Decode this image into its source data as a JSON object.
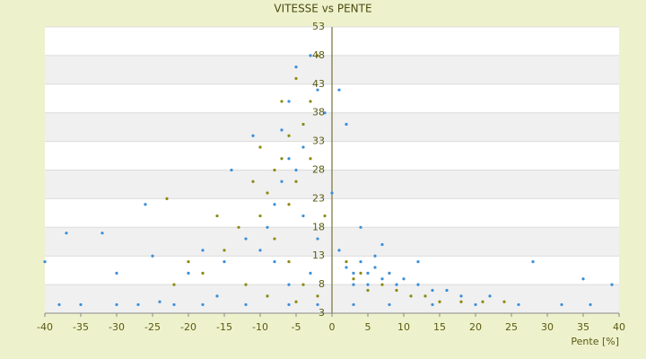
{
  "chart_data": {
    "type": "scatter",
    "title": "VITESSE vs PENTE",
    "x_label": "Pente [%]",
    "xlim": [
      -40,
      40
    ],
    "xticks": [
      -40,
      -35,
      -30,
      -25,
      -20,
      -15,
      -10,
      -5,
      0,
      5,
      10,
      15,
      20,
      25,
      30,
      35,
      40
    ],
    "ylim": [
      3,
      53
    ],
    "yticks": [
      3,
      8,
      13,
      18,
      23,
      28,
      33,
      38,
      43,
      48,
      53
    ],
    "grid": true,
    "series": [
      {
        "name": "blue",
        "color": "#3a8fd8",
        "x": [
          -38,
          -35,
          -30,
          -27,
          -22,
          -18,
          -12,
          -6,
          -2,
          3,
          8,
          14,
          20,
          26,
          32,
          36,
          2,
          3,
          4,
          5,
          6,
          7,
          8,
          9,
          10,
          12,
          14,
          16,
          18,
          22,
          1,
          3,
          5,
          6,
          -6,
          -5,
          -7,
          -4,
          -6,
          -5,
          -3,
          -8,
          -9,
          -10,
          -4,
          -7,
          -2,
          -1,
          -12,
          -15,
          -18,
          -20,
          -25,
          -30,
          -32,
          -37,
          -40,
          -26,
          -14,
          -11,
          -3,
          -6,
          -8,
          -2,
          0,
          1,
          2,
          4,
          7,
          12,
          28,
          35,
          39,
          -16,
          -24
        ],
        "values": [
          4.5,
          4.5,
          4.5,
          4.5,
          4.5,
          4.5,
          4.5,
          4.5,
          4.5,
          4.5,
          4.5,
          4.5,
          4.5,
          4.5,
          4.5,
          4.5,
          11,
          10,
          12,
          10,
          11,
          9,
          10,
          8,
          9,
          8,
          7,
          7,
          6,
          6,
          14,
          8,
          8,
          13,
          30,
          28,
          26,
          32,
          40,
          46,
          48,
          22,
          18,
          14,
          20,
          35,
          42,
          38,
          16,
          12,
          14,
          10,
          13,
          10,
          17,
          17,
          12,
          22,
          28,
          34,
          10,
          8,
          12,
          16,
          24,
          42,
          36,
          18,
          15,
          12,
          12,
          9,
          8,
          6,
          5
        ]
      },
      {
        "name": "olive",
        "color": "#8a8a10",
        "x": [
          -6,
          -7,
          -5,
          -8,
          -9,
          -6,
          -4,
          -3,
          -7,
          -5,
          -2,
          -10,
          -11,
          -8,
          -6,
          -4,
          -13,
          -15,
          -18,
          -20,
          -22,
          -23,
          -16,
          -12,
          -9,
          -5,
          -2,
          3,
          5,
          7,
          9,
          11,
          13,
          15,
          18,
          21,
          24,
          2,
          4,
          -1,
          -3,
          -10
        ],
        "values": [
          34,
          30,
          26,
          28,
          24,
          22,
          36,
          30,
          40,
          44,
          48,
          20,
          26,
          16,
          12,
          8,
          18,
          14,
          10,
          12,
          8,
          23,
          20,
          8,
          6,
          5,
          6,
          9,
          7,
          8,
          7,
          6,
          6,
          5,
          5,
          5,
          5,
          12,
          10,
          20,
          40,
          32
        ]
      }
    ]
  }
}
